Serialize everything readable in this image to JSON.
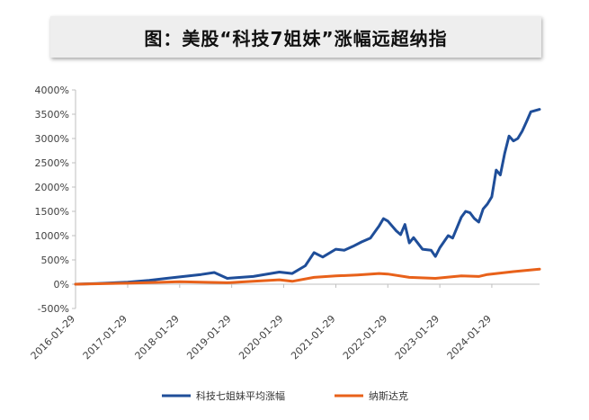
{
  "title": "图：美股“科技7姐妹”涨幅远超纳指",
  "colors": {
    "series1": "#1F4E99",
    "series2": "#E8611A"
  },
  "chart_data": {
    "type": "line",
    "title": "图：美股“科技7姐妹”涨幅远超纳指",
    "xlabel": "",
    "ylabel": "",
    "ylim": [
      -500,
      4000
    ],
    "y_ticks": [
      "-500%",
      "0%",
      "500%",
      "1000%",
      "1500%",
      "2000%",
      "2500%",
      "3000%",
      "3500%",
      "4000%"
    ],
    "y_tick_values": [
      -500,
      0,
      500,
      1000,
      1500,
      2000,
      2500,
      3000,
      3500,
      4000
    ],
    "x_ticks": [
      "2016-01-29",
      "2017-01-29",
      "2018-01-29",
      "2019-01-29",
      "2020-01-29",
      "2021-01-29",
      "2022-01-29",
      "2023-01-29",
      "2024-01-29"
    ],
    "x_range": [
      "2016-01-29",
      "2024-12-29"
    ],
    "grid": false,
    "legend_position": "bottom",
    "series": [
      {
        "name": "科技七姐妹平均涨幅",
        "color": "#1F4E99",
        "points": [
          [
            "2016-01-29",
            0
          ],
          [
            "2016-06-29",
            15
          ],
          [
            "2017-01-29",
            40
          ],
          [
            "2017-06-29",
            80
          ],
          [
            "2017-10-29",
            120
          ],
          [
            "2018-01-29",
            150
          ],
          [
            "2018-06-29",
            200
          ],
          [
            "2018-09-29",
            240
          ],
          [
            "2018-12-29",
            120
          ],
          [
            "2019-06-29",
            160
          ],
          [
            "2019-12-29",
            250
          ],
          [
            "2020-03-29",
            220
          ],
          [
            "2020-06-29",
            380
          ],
          [
            "2020-08-29",
            650
          ],
          [
            "2020-10-29",
            560
          ],
          [
            "2021-01-29",
            720
          ],
          [
            "2021-03-29",
            700
          ],
          [
            "2021-05-29",
            780
          ],
          [
            "2021-07-29",
            870
          ],
          [
            "2021-09-29",
            950
          ],
          [
            "2021-11-29",
            1200
          ],
          [
            "2021-12-29",
            1350
          ],
          [
            "2022-01-29",
            1300
          ],
          [
            "2022-03-29",
            1100
          ],
          [
            "2022-04-29",
            1020
          ],
          [
            "2022-05-29",
            1230
          ],
          [
            "2022-06-29",
            850
          ],
          [
            "2022-07-29",
            960
          ],
          [
            "2022-09-29",
            720
          ],
          [
            "2022-11-29",
            700
          ],
          [
            "2022-12-29",
            570
          ],
          [
            "2023-01-29",
            750
          ],
          [
            "2023-03-29",
            1000
          ],
          [
            "2023-04-29",
            950
          ],
          [
            "2023-06-29",
            1380
          ],
          [
            "2023-07-29",
            1500
          ],
          [
            "2023-08-29",
            1470
          ],
          [
            "2023-09-29",
            1350
          ],
          [
            "2023-10-29",
            1280
          ],
          [
            "2023-11-29",
            1550
          ],
          [
            "2023-12-29",
            1650
          ],
          [
            "2024-01-29",
            1800
          ],
          [
            "2024-02-29",
            2350
          ],
          [
            "2024-03-29",
            2250
          ],
          [
            "2024-04-29",
            2700
          ],
          [
            "2024-05-29",
            3050
          ],
          [
            "2024-06-29",
            2950
          ],
          [
            "2024-07-29",
            3000
          ],
          [
            "2024-08-29",
            3150
          ],
          [
            "2024-09-29",
            3350
          ],
          [
            "2024-10-29",
            3550
          ],
          [
            "2024-12-29",
            3600
          ]
        ]
      },
      {
        "name": "纳斯达克",
        "color": "#E8611A",
        "points": [
          [
            "2016-01-29",
            0
          ],
          [
            "2017-01-29",
            20
          ],
          [
            "2018-01-29",
            50
          ],
          [
            "2018-12-29",
            30
          ],
          [
            "2019-06-29",
            60
          ],
          [
            "2019-12-29",
            90
          ],
          [
            "2020-03-29",
            60
          ],
          [
            "2020-08-29",
            140
          ],
          [
            "2021-01-29",
            170
          ],
          [
            "2021-06-29",
            190
          ],
          [
            "2021-11-29",
            220
          ],
          [
            "2022-01-29",
            210
          ],
          [
            "2022-06-29",
            140
          ],
          [
            "2022-12-29",
            120
          ],
          [
            "2023-06-29",
            170
          ],
          [
            "2023-10-29",
            160
          ],
          [
            "2023-12-29",
            200
          ],
          [
            "2024-06-29",
            260
          ],
          [
            "2024-12-29",
            310
          ]
        ]
      }
    ]
  }
}
